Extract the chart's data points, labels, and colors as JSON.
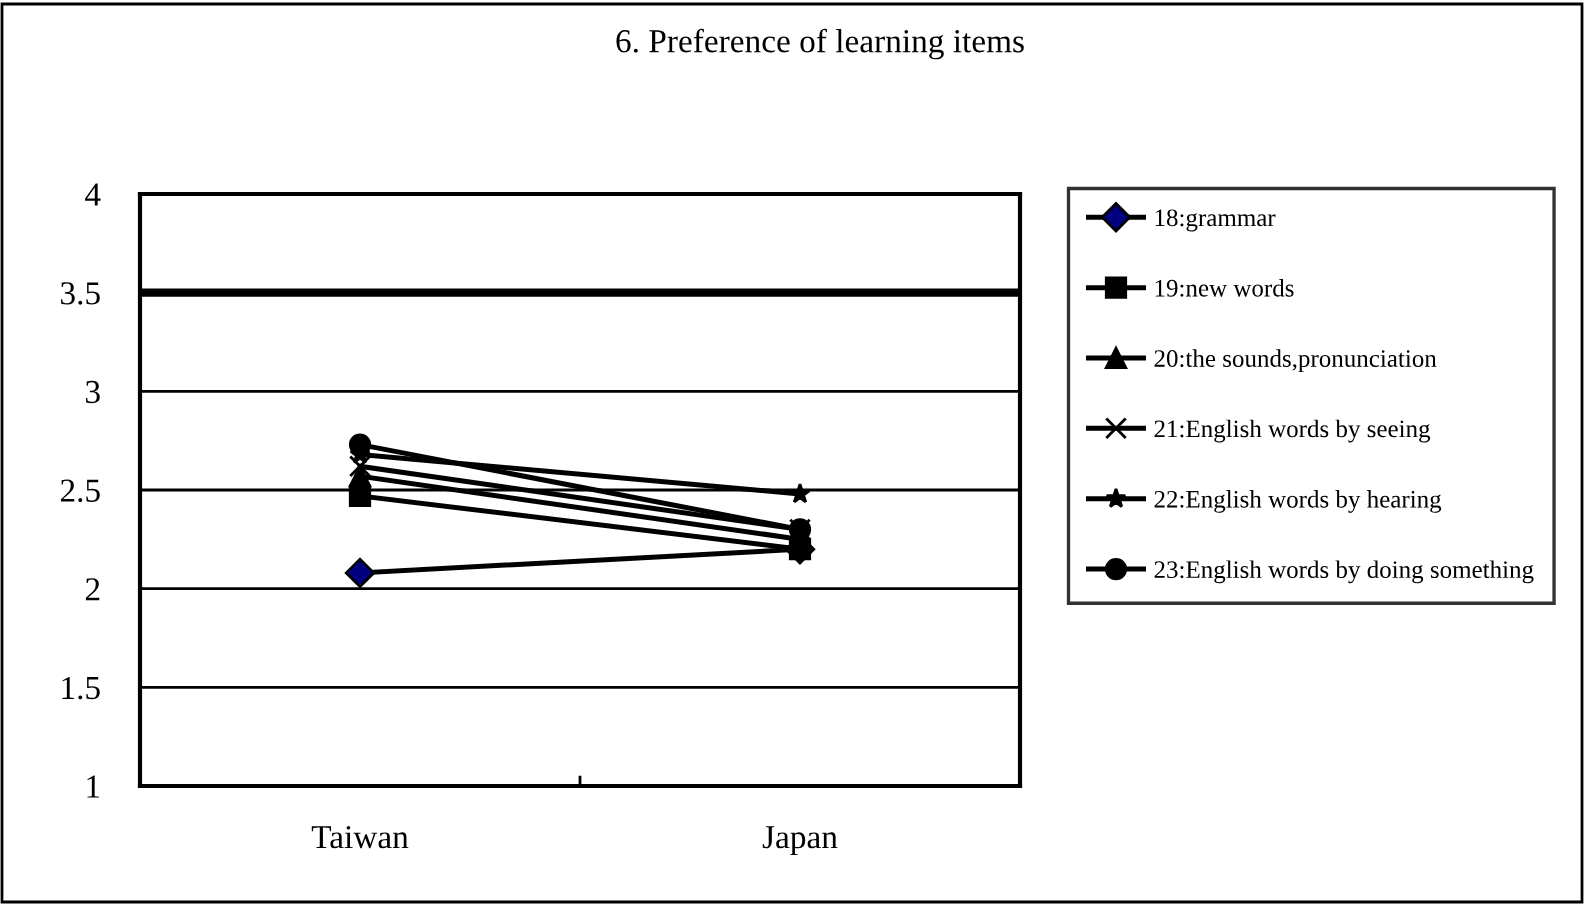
{
  "chart_data": {
    "type": "line",
    "title": "6. Preference of learning items",
    "categories": [
      "Taiwan",
      "Japan"
    ],
    "series": [
      {
        "name": "18:grammar",
        "color": "#000000",
        "marker": "diamond",
        "values": [
          2.08,
          2.2
        ]
      },
      {
        "name": "19:new words",
        "color": "#000000",
        "marker": "square",
        "values": [
          2.47,
          2.2
        ]
      },
      {
        "name": "20:the sounds,pronunciation",
        "color": "#000000",
        "marker": "triangle",
        "values": [
          2.57,
          2.25
        ]
      },
      {
        "name": "21:English words by seeing",
        "color": "#000000",
        "marker": "cross",
        "values": [
          2.62,
          2.3
        ]
      },
      {
        "name": "22:English words by hearing",
        "color": "#000000",
        "marker": "star",
        "values": [
          2.68,
          2.48
        ]
      },
      {
        "name": "23:English words by doing something",
        "color": "#000000",
        "marker": "circle",
        "values": [
          2.73,
          2.3
        ]
      }
    ],
    "ylim": [
      1,
      4
    ],
    "yticks": [
      1,
      1.5,
      2,
      2.5,
      3,
      3.5,
      4
    ],
    "ref_lines": [
      {
        "axis": "y",
        "value": 3.5,
        "color": "#000000"
      }
    ],
    "grid": "y",
    "legend": "right"
  }
}
